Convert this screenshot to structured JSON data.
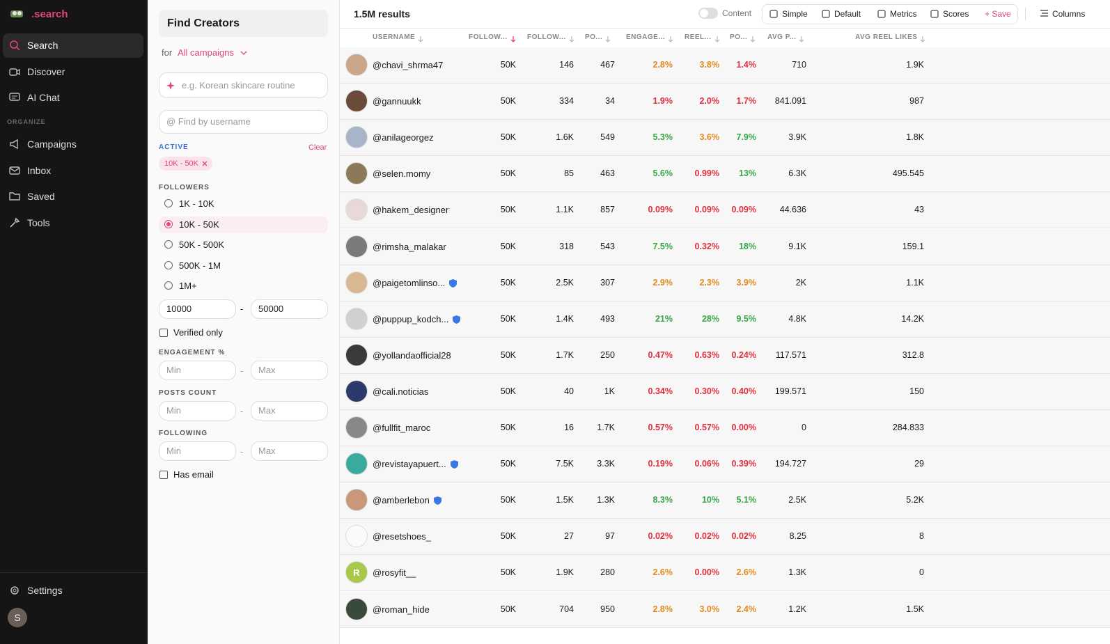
{
  "sidebar": {
    "brand": ".search",
    "nav": [
      "Search",
      "Discover",
      "AI Chat"
    ],
    "section": "ORGANIZE",
    "organize": [
      "Campaigns",
      "Inbox",
      "Saved",
      "Tools"
    ],
    "settings": "Settings",
    "avatar": "S"
  },
  "filters": {
    "title": "Find Creators",
    "for": "for",
    "campaign": "All campaigns",
    "prompt_placeholder": "e.g. Korean skincare routine",
    "username_placeholder": "@ Find by username",
    "active_label": "ACTIVE",
    "clear": "Clear",
    "chip": "10K - 50K",
    "followers_label": "FOLLOWERS",
    "follower_options": [
      "1K - 10K",
      "10K - 50K",
      "50K - 500K",
      "500K - 1M",
      "1M+"
    ],
    "selected_option": 1,
    "min": "10000",
    "max": "50000",
    "dash": "-",
    "verified": "Verified only",
    "engagement_label": "ENGAGEMENT %",
    "posts_label": "POSTS COUNT",
    "following_label": "FOLLOWING",
    "min_placeholder": "Min",
    "max_placeholder": "Max",
    "has_email": "Has email"
  },
  "toolbar": {
    "results": "1.5M results",
    "toggle": "Content",
    "views": [
      "Simple",
      "Default",
      "Metrics",
      "Scores"
    ],
    "save": "+ Save",
    "columns": "Columns"
  },
  "table": {
    "headers": [
      "USERNAME",
      "FOLLOW...",
      "FOLLOW...",
      "PO...",
      "ENGAGE...",
      "REEL...",
      "PO...",
      "AVG P...",
      "AVG REEL LIKES"
    ],
    "sorted_column": 1,
    "rows": [
      {
        "username": "@chavi_shrma47",
        "verified": false,
        "cells": [
          "50K",
          "146",
          "467",
          "2.8%",
          "3.8%",
          "1.4%",
          "710",
          "1.9K"
        ],
        "colors": [
          "orange",
          "orange",
          "red"
        ]
      },
      {
        "username": "@gannuukk",
        "verified": false,
        "cells": [
          "50K",
          "334",
          "34",
          "1.9%",
          "2.0%",
          "1.7%",
          "841.091",
          "987"
        ],
        "colors": [
          "red",
          "red",
          "red"
        ]
      },
      {
        "username": "@anilageorgez",
        "verified": false,
        "cells": [
          "50K",
          "1.6K",
          "549",
          "5.3%",
          "3.6%",
          "7.9%",
          "3.9K",
          "1.8K"
        ],
        "colors": [
          "green",
          "orange",
          "green"
        ]
      },
      {
        "username": "@selen.momy",
        "verified": false,
        "cells": [
          "50K",
          "85",
          "463",
          "5.6%",
          "0.99%",
          "13%",
          "6.3K",
          "495.545"
        ],
        "colors": [
          "green",
          "red",
          "green"
        ]
      },
      {
        "username": "@hakem_designer",
        "verified": false,
        "cells": [
          "50K",
          "1.1K",
          "857",
          "0.09%",
          "0.09%",
          "0.09%",
          "44.636",
          "43"
        ],
        "colors": [
          "red",
          "red",
          "red"
        ]
      },
      {
        "username": "@rimsha_malakar",
        "verified": false,
        "cells": [
          "50K",
          "318",
          "543",
          "7.5%",
          "0.32%",
          "18%",
          "9.1K",
          "159.1"
        ],
        "colors": [
          "green",
          "red",
          "green"
        ]
      },
      {
        "username": "@paigetomlinso...",
        "verified": true,
        "cells": [
          "50K",
          "2.5K",
          "307",
          "2.9%",
          "2.3%",
          "3.9%",
          "2K",
          "1.1K"
        ],
        "colors": [
          "orange",
          "orange",
          "orange"
        ]
      },
      {
        "username": "@puppup_kodch...",
        "verified": true,
        "cells": [
          "50K",
          "1.4K",
          "493",
          "21%",
          "28%",
          "9.5%",
          "4.8K",
          "14.2K"
        ],
        "colors": [
          "green",
          "green",
          "green"
        ]
      },
      {
        "username": "@yollandaofficial28",
        "verified": false,
        "cells": [
          "50K",
          "1.7K",
          "250",
          "0.47%",
          "0.63%",
          "0.24%",
          "117.571",
          "312.8"
        ],
        "colors": [
          "red",
          "red",
          "red"
        ]
      },
      {
        "username": "@cali.noticias",
        "verified": false,
        "cells": [
          "50K",
          "40",
          "1K",
          "0.34%",
          "0.30%",
          "0.40%",
          "199.571",
          "150"
        ],
        "colors": [
          "red",
          "red",
          "red"
        ]
      },
      {
        "username": "@fullfit_maroc",
        "verified": false,
        "cells": [
          "50K",
          "16",
          "1.7K",
          "0.57%",
          "0.57%",
          "0.00%",
          "0",
          "284.833"
        ],
        "colors": [
          "red",
          "red",
          "red"
        ]
      },
      {
        "username": "@revistayapuert...",
        "verified": true,
        "cells": [
          "50K",
          "7.5K",
          "3.3K",
          "0.19%",
          "0.06%",
          "0.39%",
          "194.727",
          "29"
        ],
        "colors": [
          "red",
          "red",
          "red"
        ]
      },
      {
        "username": "@amberlebon",
        "verified": true,
        "cells": [
          "50K",
          "1.5K",
          "1.3K",
          "8.3%",
          "10%",
          "5.1%",
          "2.5K",
          "5.2K"
        ],
        "colors": [
          "green",
          "green",
          "green"
        ]
      },
      {
        "username": "@resetshoes_",
        "verified": false,
        "cells": [
          "50K",
          "27",
          "97",
          "0.02%",
          "0.02%",
          "0.02%",
          "8.25",
          "8"
        ],
        "colors": [
          "red",
          "red",
          "red"
        ]
      },
      {
        "username": "@rosyfit__",
        "verified": false,
        "avatar_letter": "R",
        "cells": [
          "50K",
          "1.9K",
          "280",
          "2.6%",
          "0.00%",
          "2.6%",
          "1.3K",
          "0"
        ],
        "colors": [
          "orange",
          "red",
          "orange"
        ]
      },
      {
        "username": "@roman_hide",
        "verified": false,
        "cells": [
          "50K",
          "704",
          "950",
          "2.8%",
          "3.0%",
          "2.4%",
          "1.2K",
          "1.5K"
        ],
        "colors": [
          "orange",
          "orange",
          "orange"
        ]
      }
    ]
  }
}
